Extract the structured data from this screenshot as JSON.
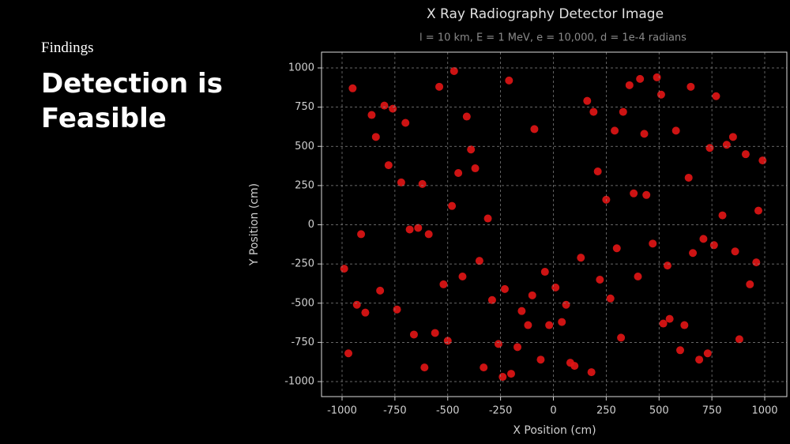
{
  "slide": {
    "label": "Findings",
    "heading": "Detection is Feasible"
  },
  "chart_data": {
    "type": "scatter",
    "title": "X Ray Radiography Detector Image",
    "subtitle": "l = 10 km, E = 1 MeV, e = 10,000, d = 1e-4 radians",
    "x_label": "X Position (cm)",
    "y_label": "Y Position (cm)",
    "color": "#e31515",
    "grid": true,
    "xlim": [
      -1000,
      1000
    ],
    "ylim": [
      -1000,
      1000
    ],
    "xticks": [
      -1000,
      -750,
      -500,
      -250,
      0,
      250,
      500,
      750,
      1000
    ],
    "yticks": [
      -1000,
      -750,
      -500,
      -250,
      0,
      250,
      500,
      750,
      1000
    ],
    "x": [
      -950,
      -820,
      -700,
      -610,
      -480,
      -390,
      -260,
      -150,
      -40,
      80,
      190,
      300,
      410,
      520,
      640,
      730,
      850,
      960,
      -910,
      -780,
      -660,
      -540,
      -430,
      -310,
      -200,
      -90,
      40,
      160,
      270,
      380,
      490,
      600,
      710,
      820,
      930,
      -990,
      -860,
      -740,
      -620,
      -500,
      -370,
      -240,
      -120,
      10,
      130,
      250,
      360,
      470,
      580,
      690,
      800,
      910,
      -930,
      -800,
      -680,
      -560,
      -450,
      -330,
      -210,
      -100,
      220,
      330,
      440,
      550,
      660,
      770,
      880,
      990,
      -970,
      -840,
      -720,
      -590,
      -470,
      -350,
      -230,
      -60,
      60,
      180,
      290,
      400,
      510,
      620,
      740,
      860,
      970,
      -890,
      -760,
      -640,
      -520,
      -410,
      -290,
      -170,
      -20,
      100,
      210,
      320,
      430,
      540,
      650,
      760
    ],
    "y": [
      870,
      -420,
      650,
      -910,
      120,
      480,
      -760,
      -550,
      -300,
      -880,
      720,
      -150,
      930,
      -630,
      300,
      -820,
      560,
      -240,
      -60,
      380,
      -700,
      880,
      -330,
      40,
      -950,
      610,
      -620,
      790,
      -470,
      200,
      940,
      -800,
      -90,
      510,
      -380,
      -280,
      700,
      -540,
      260,
      -740,
      360,
      -970,
      -640,
      -400,
      -210,
      160,
      890,
      -120,
      600,
      -860,
      60,
      450,
      -510,
      760,
      -30,
      -690,
      330,
      -910,
      920,
      -450,
      -350,
      720,
      190,
      -600,
      -180,
      820,
      -730,
      410,
      -820,
      560,
      270,
      -60,
      980,
      -230,
      -410,
      -860,
      -510,
      -940,
      600,
      -330,
      830,
      -640,
      490,
      -170,
      90,
      -560,
      740,
      -20,
      -380,
      690,
      -480,
      -780,
      -640,
      -900,
      340,
      -720,
      580,
      -260,
      880,
      -130
    ]
  }
}
